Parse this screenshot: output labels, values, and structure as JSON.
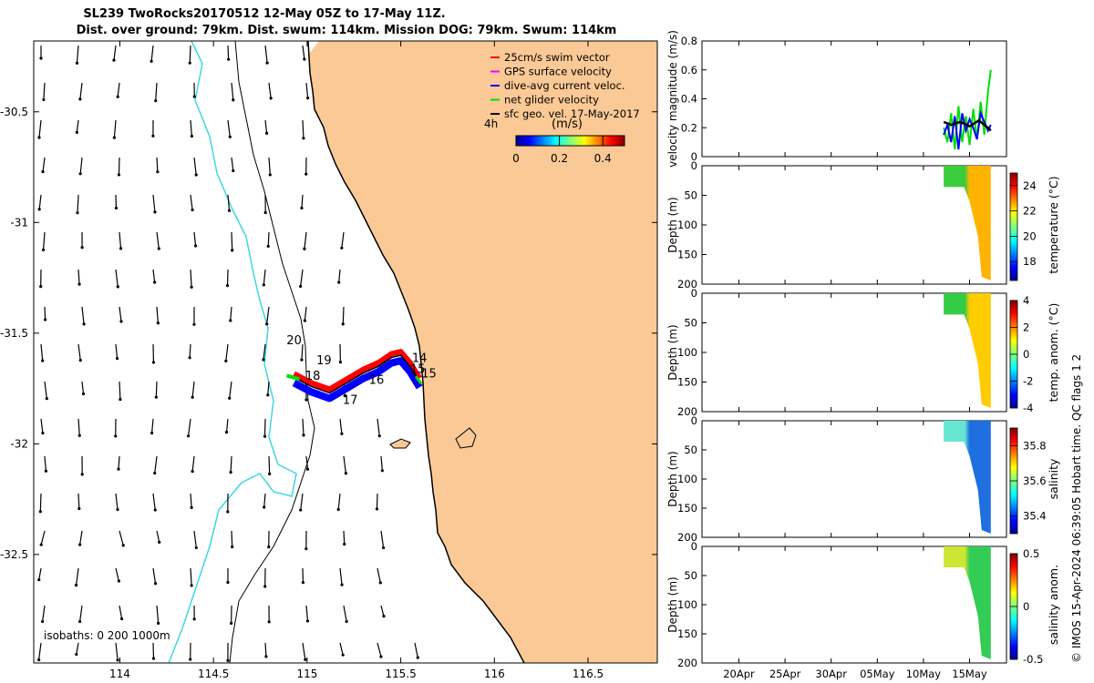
{
  "title_line1": "SL239 TwoRocks20170512 12-May 05Z to 17-May 11Z.",
  "title_line2": "Dist. over ground: 79km. Dist. swum: 114km. Mission DOG: 79km. Swum: 114km",
  "credit": "© IMOS 15-Apr-2024 06:39:05 Hobart time. QC flags 1  2",
  "colors": {
    "land": "#fbc995",
    "isobath_cyan": "#3ed8e0",
    "swim_vector": "#ff0000",
    "gps_velocity": "#ff00ff",
    "dive_avg": "#0000ff",
    "net_velocity": "#00e000",
    "sfc_geo": "#000000"
  },
  "map": {
    "isobaths_label": "isobaths: 0   200  1000m",
    "time_marker": "4h",
    "colorbar_label": "(m/s)",
    "colorbar_ticks": [
      "0",
      "0.2",
      "0.4"
    ],
    "legend": [
      {
        "label": "25cm/s swim vector",
        "color": "#ff0000"
      },
      {
        "label": "GPS surface velocity",
        "color": "#ff00ff"
      },
      {
        "label": "dive-avg current veloc.",
        "color": "#0000ff"
      },
      {
        "label": "net glider velocity",
        "color": "#00e000"
      },
      {
        "label": "sfc geo. vel. 17-May-2017",
        "color": "#000000"
      }
    ],
    "day_labels": [
      {
        "text": "20",
        "lon": 114.89,
        "lat": -31.55
      },
      {
        "text": "19",
        "lon": 115.05,
        "lat": -31.64
      },
      {
        "text": "18",
        "lon": 114.99,
        "lat": -31.71
      },
      {
        "text": "17",
        "lon": 115.19,
        "lat": -31.82
      },
      {
        "text": "16",
        "lon": 115.33,
        "lat": -31.73
      },
      {
        "text": "15",
        "lon": 115.55,
        "lat": -31.68
      },
      {
        "text": "14",
        "lon": 115.56,
        "lat": -31.63
      },
      {
        "text": "15",
        "lon": 115.61,
        "lat": -31.7
      }
    ]
  },
  "chart_data": [
    {
      "type": "line",
      "ylabel": "velocity magnitude (m/s)",
      "ylim": [
        0,
        0.8
      ],
      "yticks": [
        "0",
        "0.2",
        "0.4",
        "0.6",
        "0.8"
      ],
      "xlim_dates": [
        "2017-04-16",
        "2017-05-19"
      ],
      "xticks": [
        "20Apr",
        "25Apr",
        "30Apr",
        "05May",
        "10May",
        "15May"
      ],
      "x_days_of_ticks": [
        20,
        25,
        30,
        35,
        40,
        45
      ],
      "series": [
        {
          "color": "#00e000",
          "x_day": [
            42.2,
            42.6,
            43.0,
            43.4,
            43.8,
            44.2,
            44.6,
            45.0,
            45.4,
            45.8,
            46.2,
            46.6,
            47.0,
            47.3
          ],
          "values": [
            0.2,
            0.1,
            0.3,
            0.05,
            0.35,
            0.1,
            0.28,
            0.08,
            0.33,
            0.12,
            0.38,
            0.15,
            0.45,
            0.6
          ]
        },
        {
          "color": "#0000ff",
          "x_day": [
            42.2,
            42.6,
            43.0,
            43.4,
            43.8,
            44.2,
            44.6,
            45.0,
            45.4,
            45.8,
            46.2,
            46.6,
            47.0,
            47.3
          ],
          "values": [
            0.15,
            0.22,
            0.1,
            0.28,
            0.05,
            0.3,
            0.18,
            0.26,
            0.2,
            0.12,
            0.3,
            0.24,
            0.18,
            0.22
          ]
        },
        {
          "color": "#000000",
          "x_day": [
            42.2,
            43.0,
            44.0,
            45.0,
            46.0,
            47.0,
            47.3
          ],
          "values": [
            0.24,
            0.22,
            0.24,
            0.21,
            0.25,
            0.2,
            0.18
          ]
        }
      ]
    },
    {
      "type": "heatmap",
      "ylabel": "Depth (m)",
      "ylim": [
        0,
        200
      ],
      "yticks": [
        "0",
        "50",
        "100",
        "150",
        "200"
      ],
      "colorbar_label": "temperature (°C)",
      "colorbar_ticks": [
        "18",
        "20",
        "22",
        "24"
      ],
      "colorbar_range": [
        16.5,
        25
      ]
    },
    {
      "type": "heatmap",
      "ylabel": "Depth (m)",
      "ylim": [
        0,
        200
      ],
      "yticks": [
        "0",
        "50",
        "100",
        "150",
        "200"
      ],
      "colorbar_label": "temp. anom. (°C)",
      "colorbar_ticks": [
        "-4",
        "-2",
        "0",
        "2",
        "4"
      ],
      "colorbar_range": [
        -4,
        4
      ]
    },
    {
      "type": "heatmap",
      "ylabel": "Depth (m)",
      "ylim": [
        0,
        200
      ],
      "yticks": [
        "0",
        "50",
        "100",
        "150",
        "200"
      ],
      "colorbar_label": "salinity",
      "colorbar_ticks": [
        "35.4",
        "35.6",
        "35.8"
      ],
      "colorbar_range": [
        35.3,
        35.9
      ]
    },
    {
      "type": "heatmap",
      "ylabel": "Depth (m)",
      "ylim": [
        0,
        200
      ],
      "yticks": [
        "0",
        "50",
        "100",
        "150",
        "200"
      ],
      "colorbar_label": "salinity anom.",
      "colorbar_ticks": [
        "-0.5",
        "0",
        "0.5"
      ],
      "colorbar_range": [
        -0.5,
        0.5
      ]
    },
    {
      "type": "scatter",
      "title": "",
      "xlabel": "",
      "ylabel": "",
      "xlim": [
        113.54,
        116.87
      ],
      "ylim": [
        -32.99,
        -30.18
      ],
      "xticks": [
        "114",
        "114.5",
        "115",
        "115.5",
        "116",
        "116.5"
      ],
      "yticks": [
        "-30.5",
        "-31",
        "-31.5",
        "-32",
        "-32.5"
      ],
      "track": [
        {
          "lon": 114.93,
          "lat": -31.7
        },
        {
          "lon": 115.02,
          "lat": -31.74
        },
        {
          "lon": 115.12,
          "lat": -31.77
        },
        {
          "lon": 115.2,
          "lat": -31.73
        },
        {
          "lon": 115.3,
          "lat": -31.68
        },
        {
          "lon": 115.38,
          "lat": -31.65
        },
        {
          "lon": 115.45,
          "lat": -31.61
        },
        {
          "lon": 115.5,
          "lat": -31.6
        },
        {
          "lon": 115.55,
          "lat": -31.65
        },
        {
          "lon": 115.6,
          "lat": -31.72
        }
      ]
    }
  ]
}
